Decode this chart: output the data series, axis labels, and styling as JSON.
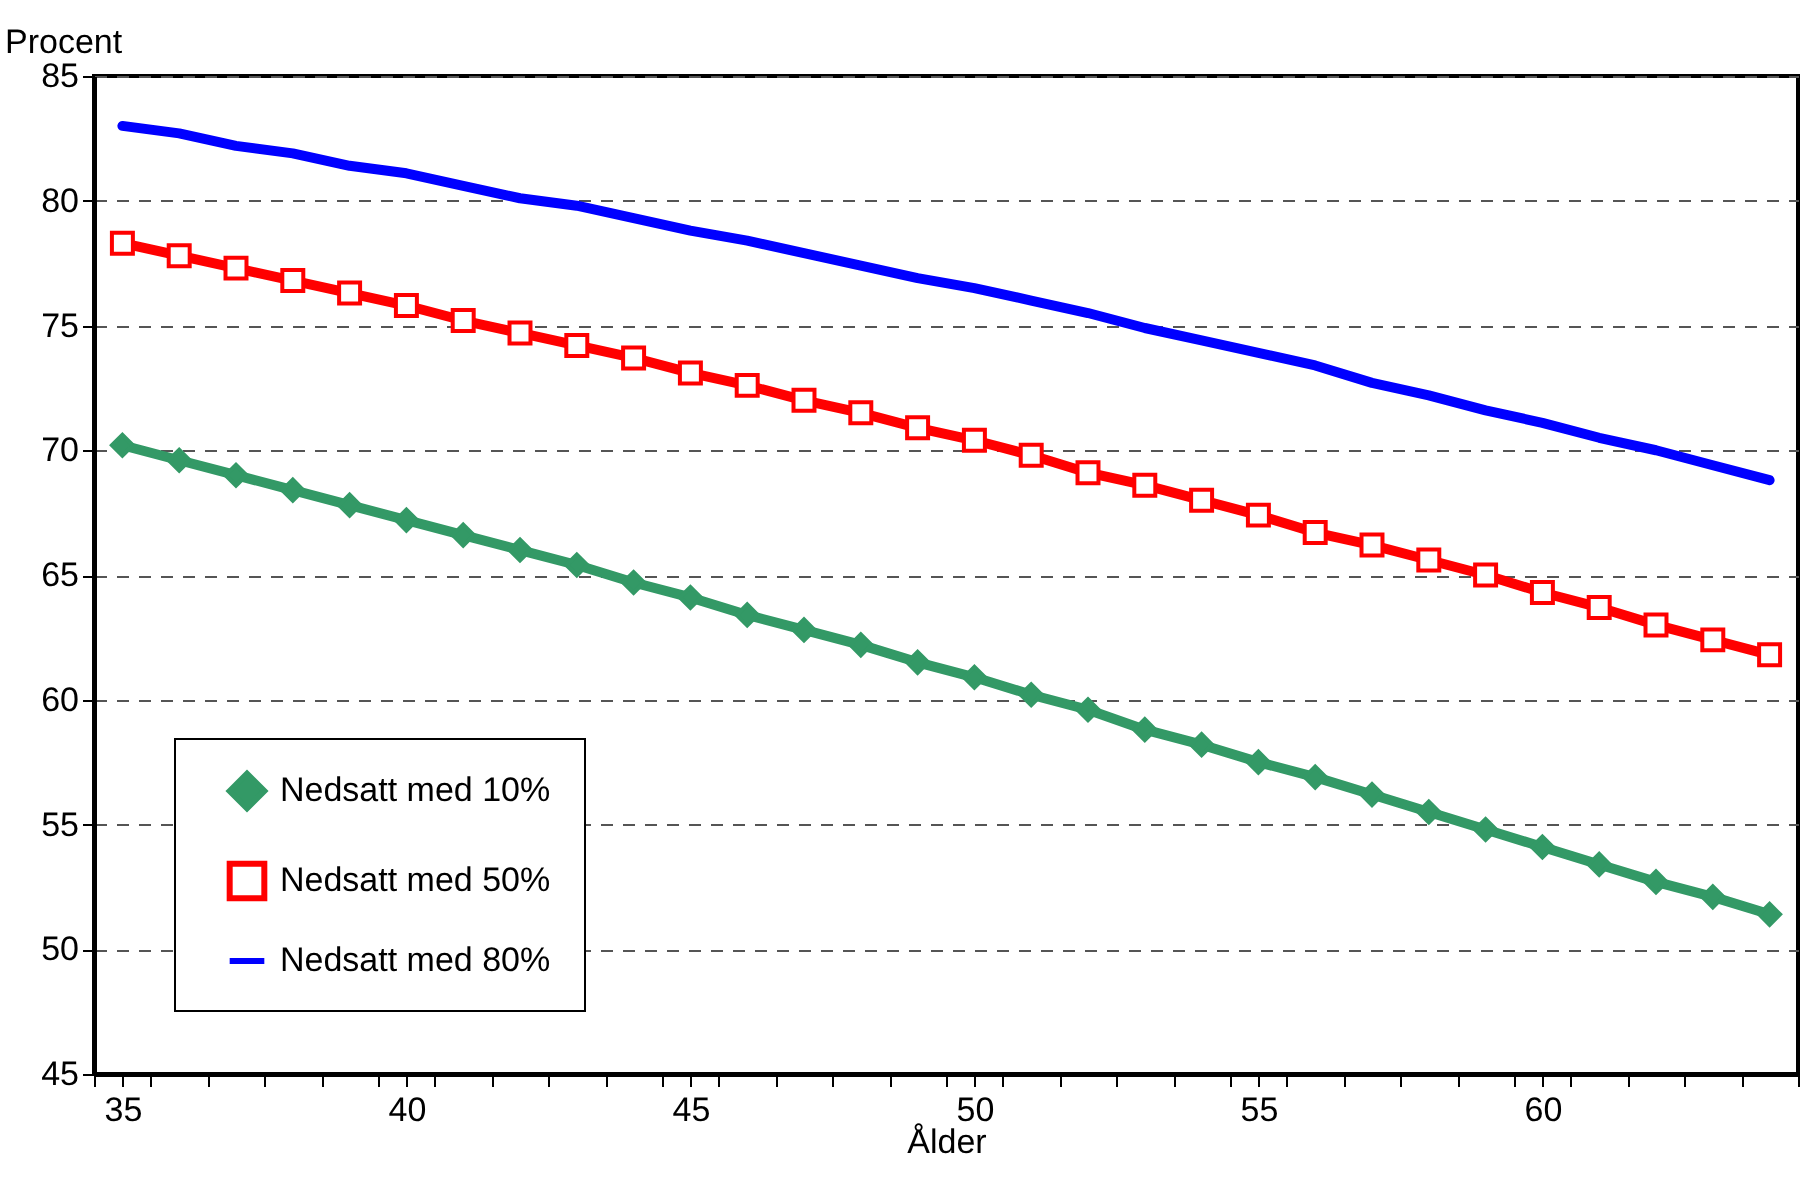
{
  "chart_data": {
    "type": "line",
    "xlabel": "Ålder",
    "ylabel": "Procent",
    "x": [
      35,
      36,
      37,
      38,
      39,
      40,
      41,
      42,
      43,
      44,
      45,
      46,
      47,
      48,
      49,
      50,
      51,
      52,
      53,
      54,
      55,
      56,
      57,
      58,
      59,
      60,
      61,
      62,
      63,
      64
    ],
    "series": [
      {
        "name": "Nedsatt med 10%",
        "color": "#339966",
        "marker": "diamond",
        "values": [
          70.2,
          69.6,
          69.0,
          68.4,
          67.8,
          67.2,
          66.6,
          66.0,
          65.4,
          64.7,
          64.1,
          63.4,
          62.8,
          62.2,
          61.5,
          60.9,
          60.2,
          59.6,
          58.8,
          58.2,
          57.5,
          56.9,
          56.2,
          55.5,
          54.8,
          54.1,
          53.4,
          52.7,
          52.1,
          51.4
        ]
      },
      {
        "name": "Nedsatt med 50%",
        "color": "#ff0000",
        "marker": "square",
        "values": [
          78.3,
          77.8,
          77.3,
          76.8,
          76.3,
          75.8,
          75.2,
          74.7,
          74.2,
          73.7,
          73.1,
          72.6,
          72.0,
          71.5,
          70.9,
          70.4,
          69.8,
          69.1,
          68.6,
          68.0,
          67.4,
          66.7,
          66.2,
          65.6,
          65.0,
          64.3,
          63.7,
          63.0,
          62.4,
          61.8
        ]
      },
      {
        "name": "Nedsatt med 80%",
        "color": "#0000ff",
        "marker": "none",
        "values": [
          83.0,
          82.7,
          82.2,
          81.9,
          81.4,
          81.1,
          80.6,
          80.1,
          79.8,
          79.3,
          78.8,
          78.4,
          77.9,
          77.4,
          76.9,
          76.5,
          76.0,
          75.5,
          74.9,
          74.4,
          73.9,
          73.4,
          72.7,
          72.2,
          71.6,
          71.1,
          70.5,
          70.0,
          69.4,
          68.8
        ]
      }
    ],
    "xlim": [
      34.5,
      64.5
    ],
    "xticks": [
      {
        "value": 34.5,
        "label": null
      },
      35,
      {
        "value": 35.5,
        "label": null
      },
      {
        "value": 36.5,
        "label": null
      },
      {
        "value": 37.5,
        "label": null
      },
      {
        "value": 38.5,
        "label": null
      },
      {
        "value": 39.5,
        "label": null
      },
      40,
      {
        "value": 40.5,
        "label": null
      },
      {
        "value": 41.5,
        "label": null
      },
      {
        "value": 42.5,
        "label": null
      },
      {
        "value": 43.5,
        "label": null
      },
      {
        "value": 44.5,
        "label": null
      },
      45,
      {
        "value": 45.5,
        "label": null
      },
      {
        "value": 46.5,
        "label": null
      },
      {
        "value": 47.5,
        "label": null
      },
      {
        "value": 48.5,
        "label": null
      },
      {
        "value": 49.5,
        "label": null
      },
      50,
      {
        "value": 50.5,
        "label": null
      },
      {
        "value": 51.5,
        "label": null
      },
      {
        "value": 52.5,
        "label": null
      },
      {
        "value": 53.5,
        "label": null
      },
      {
        "value": 54.5,
        "label": null
      },
      55,
      {
        "value": 55.5,
        "label": null
      },
      {
        "value": 56.5,
        "label": null
      },
      {
        "value": 57.5,
        "label": null
      },
      {
        "value": 58.5,
        "label": null
      },
      {
        "value": 59.5,
        "label": null
      },
      60,
      {
        "value": 60.5,
        "label": null
      },
      {
        "value": 61.5,
        "label": null
      },
      {
        "value": 62.5,
        "label": null
      },
      {
        "value": 63.5,
        "label": null
      },
      {
        "value": 64.5,
        "label": null
      }
    ],
    "ylim": [
      45,
      85
    ],
    "yticks": [
      45,
      50,
      55,
      60,
      65,
      70,
      75,
      80,
      85
    ],
    "grid": "y",
    "legend": "bottom left"
  }
}
